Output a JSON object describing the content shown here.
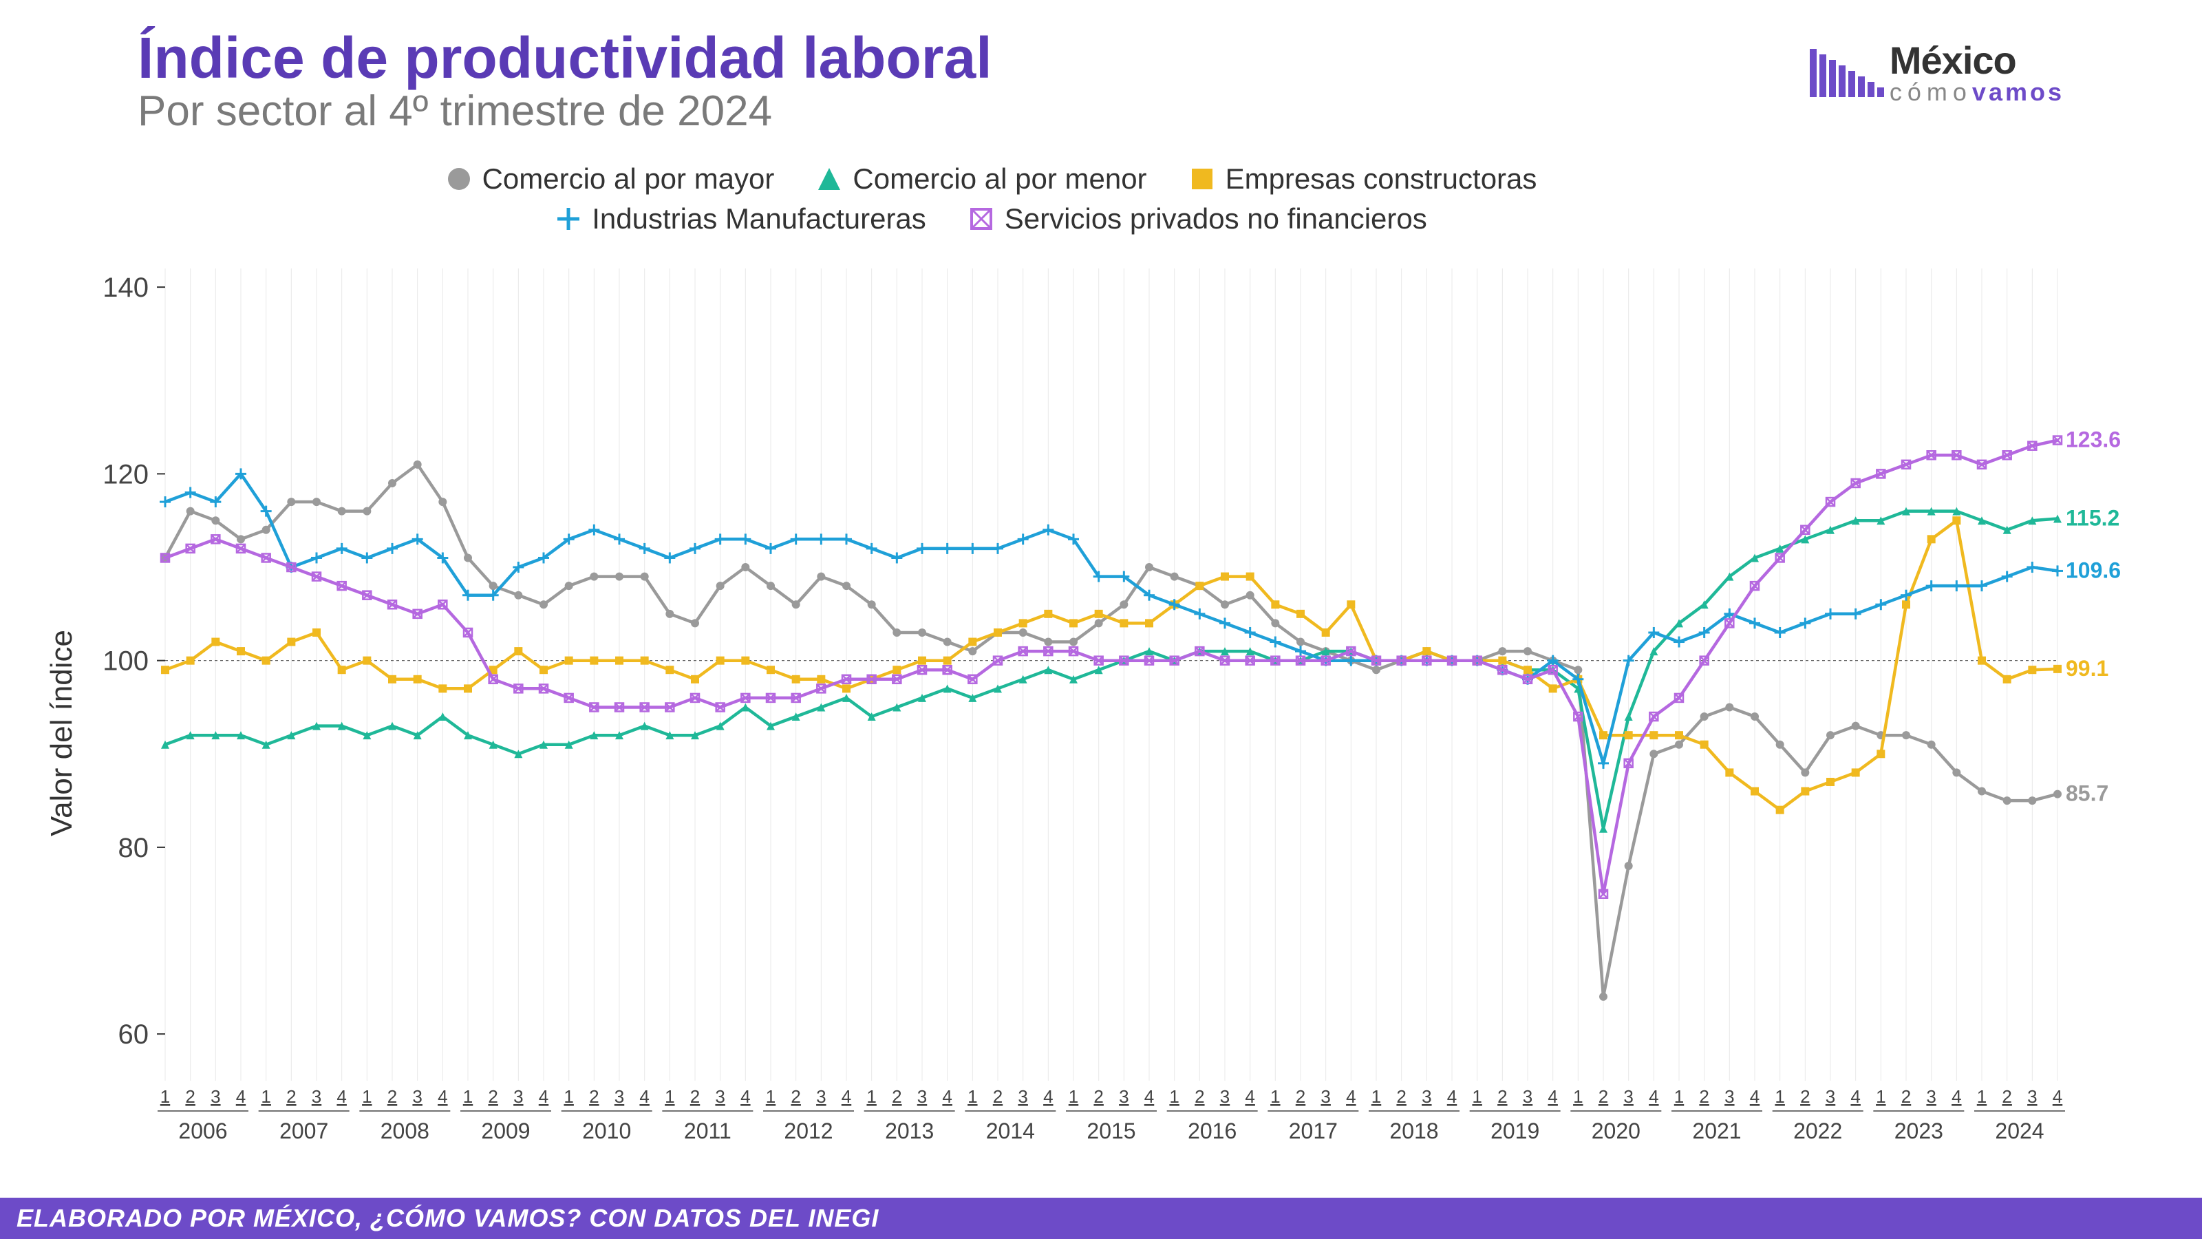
{
  "title": "Índice de productividad laboral",
  "subtitle": "Por sector al 4º trimestre de 2024",
  "title_color": "#5a3bb5",
  "title_fontsize": 84,
  "subtitle_color": "#7a7a7a",
  "subtitle_fontsize": 62,
  "y_axis_label": "Valor del índice",
  "footer_text": "ELABORADO POR MÉXICO, ¿CÓMO VAMOS? CON DATOS DEL INEGI",
  "footer_bg": "#6d4bc8",
  "footer_fg": "#ffffff",
  "footer_fontsize": 36,
  "logo": {
    "text1": "México",
    "text2": "cómo",
    "text3": "vamos"
  },
  "chart": {
    "type": "line",
    "background": "#ffffff",
    "grid_color": "#e8e8e8",
    "ylim": [
      55,
      142
    ],
    "yticks": [
      60,
      80,
      100,
      120,
      140
    ],
    "reference_y": 100,
    "years": [
      2006,
      2007,
      2008,
      2009,
      2010,
      2011,
      2012,
      2013,
      2014,
      2015,
      2016,
      2017,
      2018,
      2019,
      2020,
      2021,
      2022,
      2023,
      2024
    ],
    "quarters_per_year": 4,
    "xaxis_tick_labels": [
      "1",
      "2",
      "3",
      "4"
    ],
    "marker_size": 6,
    "line_width": 4.5,
    "series": [
      {
        "id": "mayor",
        "label": "Comercio al por mayor",
        "color": "#9a9a9a",
        "marker": "circle",
        "end_label": "85.7",
        "values": [
          111,
          116,
          115,
          113,
          114,
          117,
          117,
          116,
          116,
          119,
          121,
          117,
          111,
          108,
          107,
          106,
          108,
          109,
          109,
          109,
          105,
          104,
          108,
          110,
          108,
          106,
          109,
          108,
          106,
          103,
          103,
          102,
          101,
          103,
          103,
          102,
          102,
          104,
          106,
          110,
          109,
          108,
          106,
          107,
          104,
          102,
          101,
          100,
          99,
          100,
          101,
          100,
          100,
          101,
          101,
          100,
          99,
          64,
          78,
          90,
          91,
          94,
          95,
          94,
          91,
          88,
          92,
          93,
          92,
          92,
          91,
          88,
          86,
          85,
          85,
          85.7
        ]
      },
      {
        "id": "menor",
        "label": "Comercio al por menor",
        "color": "#1fb898",
        "marker": "triangle",
        "end_label": "115.2",
        "values": [
          91,
          92,
          92,
          92,
          91,
          92,
          93,
          93,
          92,
          93,
          92,
          94,
          92,
          91,
          90,
          91,
          91,
          92,
          92,
          93,
          92,
          92,
          93,
          95,
          93,
          94,
          95,
          96,
          94,
          95,
          96,
          97,
          96,
          97,
          98,
          99,
          98,
          99,
          100,
          101,
          100,
          101,
          101,
          101,
          100,
          100,
          101,
          101,
          100,
          100,
          101,
          100,
          100,
          100,
          99,
          99,
          97,
          82,
          94,
          101,
          104,
          106,
          109,
          111,
          112,
          113,
          114,
          115,
          115,
          116,
          116,
          116,
          115,
          114,
          115,
          115.2
        ]
      },
      {
        "id": "construc",
        "label": "Empresas constructoras",
        "color": "#f0b91f",
        "marker": "square",
        "end_label": "99.1",
        "values": [
          99,
          100,
          102,
          101,
          100,
          102,
          103,
          99,
          100,
          98,
          98,
          97,
          97,
          99,
          101,
          99,
          100,
          100,
          100,
          100,
          99,
          98,
          100,
          100,
          99,
          98,
          98,
          97,
          98,
          99,
          100,
          100,
          102,
          103,
          104,
          105,
          104,
          105,
          104,
          104,
          106,
          108,
          109,
          109,
          106,
          105,
          103,
          106,
          100,
          100,
          101,
          100,
          100,
          100,
          99,
          97,
          98,
          92,
          92,
          92,
          92,
          91,
          88,
          86,
          84,
          86,
          87,
          88,
          90,
          106,
          113,
          115,
          100,
          98,
          99,
          99.1
        ]
      },
      {
        "id": "manuf",
        "label": "Industrias Manufactureras",
        "color": "#1fa0d8",
        "marker": "plus",
        "end_label": "109.6",
        "values": [
          117,
          118,
          117,
          120,
          116,
          110,
          111,
          112,
          111,
          112,
          113,
          111,
          107,
          107,
          110,
          111,
          113,
          114,
          113,
          112,
          111,
          112,
          113,
          113,
          112,
          113,
          113,
          113,
          112,
          111,
          112,
          112,
          112,
          112,
          113,
          114,
          113,
          109,
          109,
          107,
          106,
          105,
          104,
          103,
          102,
          101,
          100,
          100,
          100,
          100,
          100,
          100,
          100,
          99,
          98,
          100,
          98,
          89,
          100,
          103,
          102,
          103,
          105,
          104,
          103,
          104,
          105,
          105,
          106,
          107,
          108,
          108,
          108,
          109,
          110,
          109.6
        ]
      },
      {
        "id": "servicios",
        "label": "Servicios privados no financieros",
        "color": "#b568e0",
        "marker": "square-open",
        "end_label": "123.6",
        "values": [
          111,
          112,
          113,
          112,
          111,
          110,
          109,
          108,
          107,
          106,
          105,
          106,
          103,
          98,
          97,
          97,
          96,
          95,
          95,
          95,
          95,
          96,
          95,
          96,
          96,
          96,
          97,
          98,
          98,
          98,
          99,
          99,
          98,
          100,
          101,
          101,
          101,
          100,
          100,
          100,
          100,
          101,
          100,
          100,
          100,
          100,
          100,
          101,
          100,
          100,
          100,
          100,
          100,
          99,
          98,
          99,
          94,
          75,
          89,
          94,
          96,
          100,
          104,
          108,
          111,
          114,
          117,
          119,
          120,
          121,
          122,
          122,
          121,
          122,
          123,
          123.6
        ]
      }
    ]
  }
}
